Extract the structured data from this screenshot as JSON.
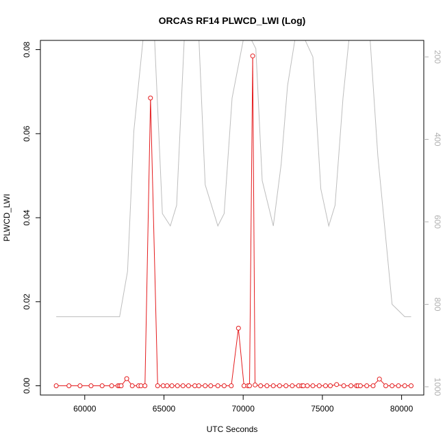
{
  "chart_data": {
    "type": "line",
    "title": "ORCAS RF14 PLWCD_LWI (Log)",
    "xlabel": "UTC Seconds",
    "ylabel": "PLWCD_LWI",
    "xlim": [
      57200,
      81400
    ],
    "ylim": [
      -0.0022,
      0.0822
    ],
    "xticks": [
      60000,
      65000,
      70000,
      75000,
      80000
    ],
    "yticks": [
      0.0,
      0.02,
      0.04,
      0.06,
      0.08
    ],
    "ytick_labels": [
      "0.00",
      "0.02",
      "0.04",
      "0.06",
      "0.08"
    ],
    "grid": false,
    "colors": {
      "primary": "#e41a1c",
      "secondary": "#bdbdbd"
    },
    "series": [
      {
        "x": [
          58200,
          59000,
          59700,
          60400,
          61100,
          61700,
          62100,
          62200,
          62300,
          62650,
          63000,
          63400,
          63550,
          63800,
          64150,
          64600,
          64950,
          65200,
          65500,
          65850,
          66200,
          66550,
          66950,
          67200,
          67600,
          67950,
          68400,
          68800,
          69250,
          69700,
          70050,
          70300,
          70400,
          70600,
          70750,
          71100,
          71500,
          71900,
          72300,
          72700,
          73100,
          73500,
          73700,
          73800,
          74050,
          74400,
          74800,
          75200,
          75500,
          75900,
          76350,
          76800,
          77150,
          77250,
          77400,
          77800,
          78200,
          78600,
          79000,
          79400,
          79800,
          80200,
          80600
        ],
        "y": [
          0.0,
          0.0,
          0.0,
          0.0,
          0.0,
          0.0,
          0.0,
          0.0,
          0.0,
          0.0017,
          0.0,
          0.0,
          0.0,
          0.0,
          0.0685,
          0.0,
          0.0,
          0.0,
          0.0,
          0.0,
          0.0,
          0.0,
          0.0,
          0.0,
          0.0,
          0.0,
          0.0,
          0.0,
          0.0,
          0.0137,
          0.0,
          0.0,
          0.0,
          0.0785,
          0.0002,
          0.0,
          0.0,
          0.0,
          0.0,
          0.0,
          0.0,
          0.0,
          0.0,
          0.0,
          0.0,
          0.0,
          0.0,
          0.0,
          0.0,
          0.0003,
          0.0,
          0.0,
          0.0,
          0.0,
          0.0,
          0.0,
          0.0,
          0.0016,
          0.0,
          0.0,
          0.0,
          0.0,
          0.0
        ]
      },
      {
        "axis": "right",
        "x": [
          58200,
          59000,
          60000,
          61000,
          62200,
          62700,
          63100,
          63700,
          64400,
          64900,
          65400,
          65800,
          66300,
          66800,
          67200,
          67600,
          68400,
          68800,
          69300,
          69700,
          70050,
          70400,
          70800,
          71200,
          71900,
          72400,
          72800,
          73300,
          73800,
          74400,
          74900,
          75400,
          75800,
          76300,
          76700,
          77200,
          77600,
          78000,
          78500,
          79000,
          79400,
          80200,
          80600
        ],
        "y": [
          830,
          830,
          830,
          830,
          830,
          720,
          380,
          150,
          150,
          580,
          610,
          560,
          140,
          140,
          150,
          510,
          610,
          580,
          300,
          220,
          150,
          150,
          180,
          500,
          610,
          460,
          270,
          150,
          150,
          200,
          520,
          610,
          560,
          300,
          150,
          150,
          150,
          150,
          440,
          640,
          800,
          830,
          830
        ]
      }
    ],
    "y2": {
      "lim": [
        1020,
        160
      ],
      "ticks": [
        200,
        400,
        600,
        800,
        1000
      ]
    }
  }
}
